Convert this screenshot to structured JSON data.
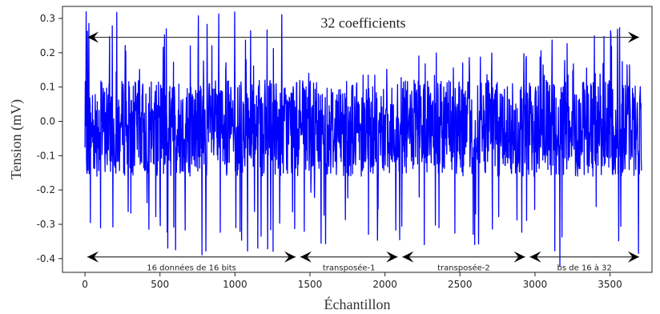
{
  "chart_data": {
    "type": "line",
    "xlabel": "Échantillon",
    "ylabel": "Tension (mV)",
    "xlim": [
      -150,
      3780
    ],
    "ylim": [
      -0.44,
      0.335
    ],
    "x_ticks": [
      0,
      500,
      1000,
      1500,
      2000,
      2500,
      3000,
      3500
    ],
    "y_ticks": [
      -0.4,
      -0.3,
      -0.2,
      -0.1,
      0.0,
      0.1,
      0.2,
      0.3
    ],
    "x_tick_labels": [
      "0",
      "500",
      "1000",
      "1500",
      "2000",
      "2500",
      "3000",
      "3500"
    ],
    "y_tick_labels": [
      "-0.4",
      "-0.3",
      "-0.2",
      "-0.1",
      "0.0",
      "0.1",
      "0.2",
      "0.3"
    ],
    "grid": false,
    "series": [
      {
        "color": "#0000ff",
        "x_range": [
          0,
          3710
        ],
        "approx_envelope": {
          "upper": 0.12,
          "lower": -0.16
        },
        "peak_segments": [
          {
            "x_range": [
              0,
              1420
            ],
            "max": 0.32,
            "min": -0.42
          },
          {
            "x_range": [
              1420,
              2100
            ],
            "max": 0.24,
            "min": -0.37
          },
          {
            "x_range": [
              2100,
              2950
            ],
            "max": 0.2,
            "min": -0.38
          },
          {
            "x_range": [
              2950,
              3710
            ],
            "max": 0.28,
            "min": -0.44
          }
        ]
      }
    ],
    "annotations": [
      {
        "text": "32 coefficients",
        "x_start": 0,
        "x_end": 3710,
        "y": 0.245
      },
      {
        "text": "16 données de 16 bits",
        "x_start": 0,
        "x_end": 1420,
        "y": -0.395
      },
      {
        "text": "transposée-1",
        "x_start": 1420,
        "x_end": 2100,
        "y": -0.395
      },
      {
        "text": "transposée-2",
        "x_start": 2100,
        "x_end": 2950,
        "y": -0.395
      },
      {
        "text": "bs de 16 à 32",
        "x_start": 2950,
        "x_end": 3710,
        "y": -0.395
      }
    ]
  }
}
